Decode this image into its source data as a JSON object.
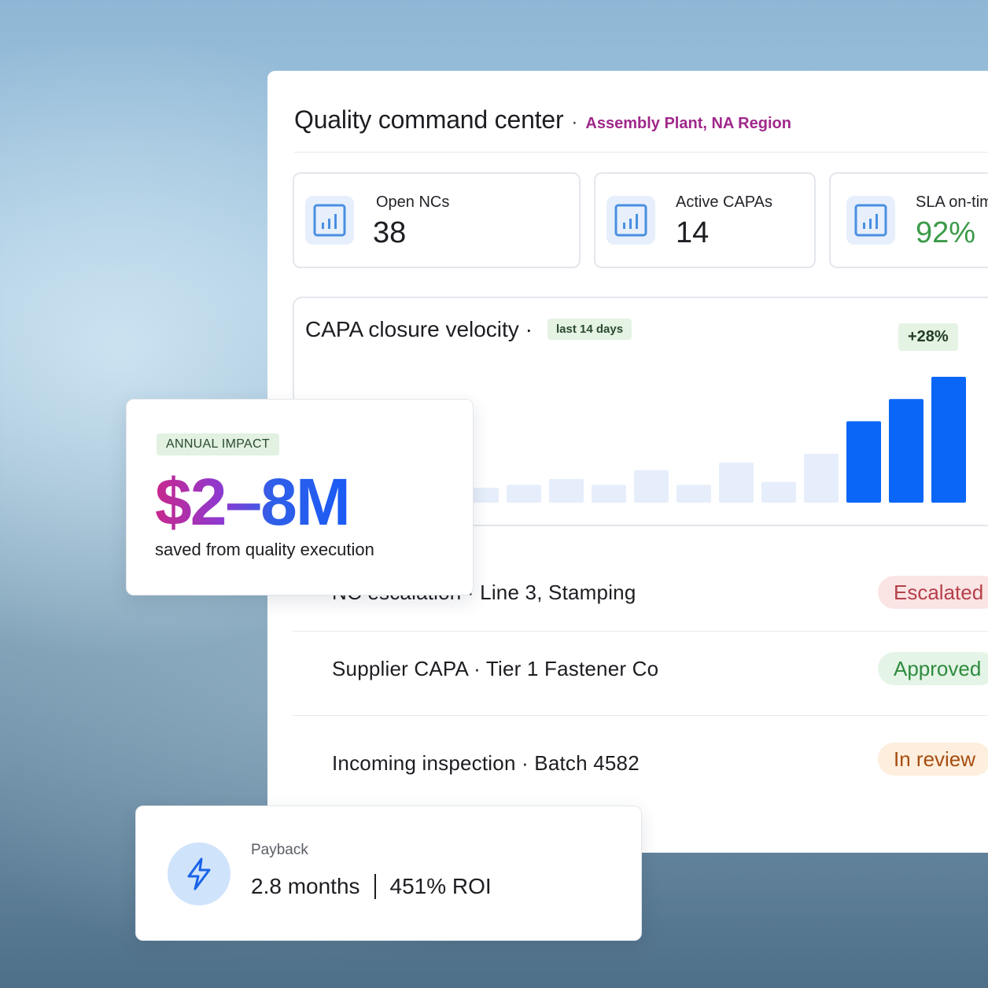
{
  "header": {
    "title": "Quality command center",
    "separator": "·",
    "subtitle": "Assembly Plant, NA Region"
  },
  "kpis": [
    {
      "label": "Open NCs",
      "value": "38",
      "icon": "bar-chart-icon"
    },
    {
      "label": "Active CAPAs",
      "value": "14",
      "icon": "bar-chart-icon"
    },
    {
      "label": "SLA on-time",
      "value": "92%",
      "icon": "bar-chart-icon"
    }
  ],
  "chart": {
    "title": "CAPA closure velocity ·",
    "range_tag": "last 14 days",
    "delta": "+28%"
  },
  "chart_data": {
    "type": "bar",
    "title": "CAPA closure velocity",
    "values": [
      22,
      22,
      18,
      22,
      10,
      12,
      16,
      12,
      22,
      12,
      27,
      14,
      33,
      55,
      70,
      85
    ],
    "highlight_from_index": 13,
    "colors": {
      "muted": "#e6eefb",
      "highlight": "#0a66f7"
    },
    "grid": false
  },
  "rows": [
    {
      "text": "NC escalation · Line 3, Stamping",
      "status": "Escalated"
    },
    {
      "text": "Supplier CAPA · Tier 1 Fastener Co",
      "status": "Approved"
    },
    {
      "text": "Incoming inspection · Batch 4582",
      "status": "In review"
    }
  ],
  "impact": {
    "tag": "ANNUAL IMPACT",
    "value": "$2–8M",
    "caption": "saved from quality execution"
  },
  "payback": {
    "label": "Payback",
    "months": "2.8 months",
    "roi": "451% ROI",
    "icon": "lightning-icon"
  },
  "colors": {
    "accent_pink": "#a0288a",
    "accent_blue": "#0a66f7",
    "kpi_positive": "#3a9a48"
  }
}
